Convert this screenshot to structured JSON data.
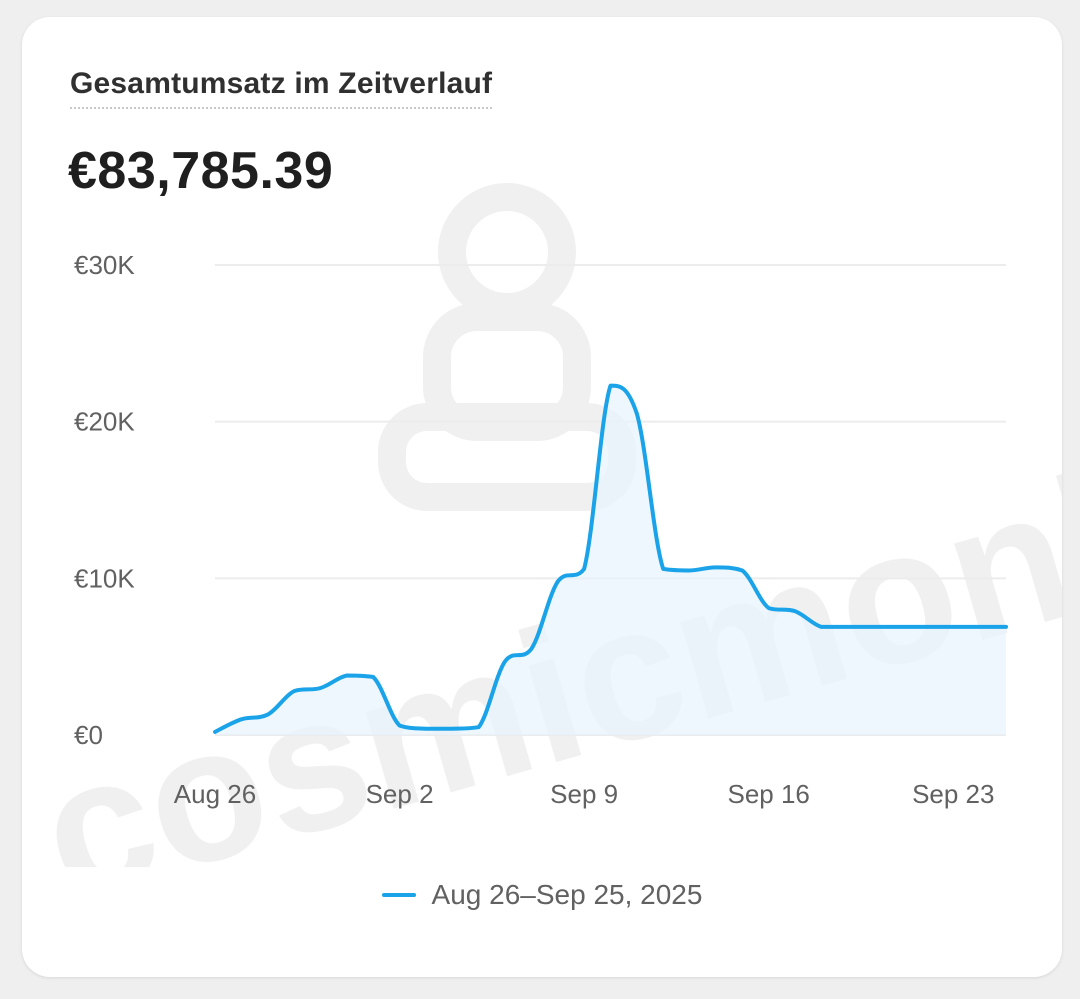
{
  "card": {
    "title": "Gesamtumsatz im Zeitverlauf",
    "total": "€83,785.39"
  },
  "watermark": "cosmicmonks",
  "colors": {
    "line": "#1aa3e8",
    "area_fill": "#e6f3fc",
    "grid": "#ececec",
    "card_bg": "#ffffff",
    "page_bg": "#efefef"
  },
  "chart_data": {
    "type": "area",
    "title": "Gesamtumsatz im Zeitverlauf",
    "x": [
      "Aug 26",
      "Aug 27",
      "Aug 28",
      "Aug 29",
      "Aug 30",
      "Aug 31",
      "Sep 1",
      "Sep 2",
      "Sep 3",
      "Sep 4",
      "Sep 5",
      "Sep 6",
      "Sep 7",
      "Sep 8",
      "Sep 9",
      "Sep 10",
      "Sep 11",
      "Sep 12",
      "Sep 13",
      "Sep 14",
      "Sep 15",
      "Sep 16",
      "Sep 17",
      "Sep 18",
      "Sep 19",
      "Sep 20",
      "Sep 21",
      "Sep 22",
      "Sep 23",
      "Sep 24",
      "Sep 25"
    ],
    "series": [
      {
        "name": "Aug 26–Sep 25, 2025",
        "values": [
          200,
          1000,
          1300,
          2800,
          3000,
          3800,
          3700,
          600,
          400,
          400,
          500,
          4700,
          5500,
          9800,
          10600,
          22300,
          20500,
          10600,
          10500,
          10700,
          10500,
          8100,
          7900,
          6900,
          6900,
          6900,
          6900,
          6900,
          6900,
          6900,
          6900
        ]
      }
    ],
    "xticks": [
      "Aug 26",
      "Sep 2",
      "Sep 9",
      "Sep 16",
      "Sep 23"
    ],
    "yticks": [
      "€0",
      "€10K",
      "€20K",
      "€30K"
    ],
    "ytick_values": [
      0,
      10000,
      20000,
      30000
    ],
    "ylim": [
      0,
      30000
    ],
    "grid": true,
    "legend": "bottom-center"
  }
}
